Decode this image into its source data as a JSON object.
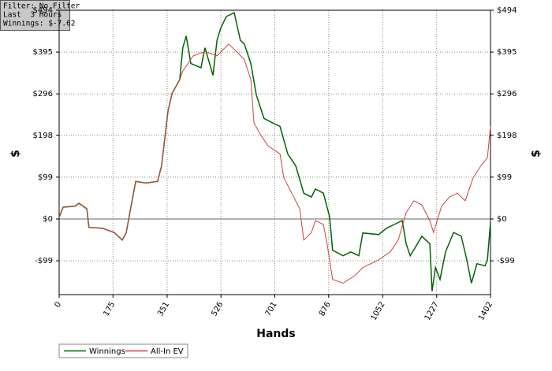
{
  "chart_data": {
    "type": "line",
    "x_label": "Hands",
    "y_label": "$",
    "y2_label": "$",
    "annotations": [
      "Filter: No Filter",
      "Last  3 Hours",
      "Winnings: $-7.62"
    ],
    "xlim": [
      0,
      1402
    ],
    "xticks": [
      0,
      175,
      351,
      526,
      701,
      876,
      1052,
      1227,
      1402
    ],
    "ylim": [
      -179,
      494
    ],
    "yticks": [
      {
        "value": -99,
        "label": "-$99"
      },
      {
        "value": 0,
        "label": "$0"
      },
      {
        "value": 99,
        "label": "$99"
      },
      {
        "value": 198,
        "label": "$198"
      },
      {
        "value": 296,
        "label": "$296"
      },
      {
        "value": 395,
        "label": "$395"
      },
      {
        "value": 494,
        "label": "$494"
      }
    ],
    "y2lim": [
      -179,
      494
    ],
    "y2ticks": [
      {
        "value": -99,
        "label": "-$99"
      },
      {
        "value": 0,
        "label": "$0"
      },
      {
        "value": 99,
        "label": "$99"
      },
      {
        "value": 198,
        "label": "$198"
      },
      {
        "value": 296,
        "label": "$296"
      },
      {
        "value": 395,
        "label": "$395"
      },
      {
        "value": 494,
        "label": "$494"
      }
    ],
    "grid": true,
    "legend": "bottom-left",
    "series": [
      {
        "name": "Winnings",
        "color": "#006400",
        "x": [
          0,
          13,
          51,
          64,
          90,
          97,
          141,
          179,
          205,
          218,
          231,
          249,
          282,
          320,
          333,
          354,
          367,
          392,
          402,
          413,
          428,
          461,
          474,
          500,
          513,
          525,
          543,
          569,
          589,
          602,
          623,
          641,
          666,
          692,
          718,
          743,
          769,
          795,
          820,
          833,
          859,
          879,
          889,
          923,
          948,
          974,
          987,
          1038,
          1064,
          1089,
          1115,
          1128,
          1141,
          1179,
          1205,
          1212,
          1223,
          1238,
          1256,
          1282,
          1307,
          1325,
          1340,
          1358,
          1384,
          1392,
          1402
        ],
        "values": [
          4,
          28,
          30,
          37,
          24,
          -20,
          -22,
          -32,
          -50,
          -32,
          19,
          89,
          85,
          89,
          126,
          256,
          297,
          330,
          405,
          433,
          368,
          358,
          405,
          340,
          423,
          451,
          479,
          488,
          423,
          414,
          368,
          293,
          238,
          228,
          219,
          154,
          126,
          61,
          52,
          71,
          61,
          6,
          -74,
          -87,
          -78,
          -87,
          -33,
          -37,
          -22,
          -13,
          -4,
          -59,
          -87,
          -41,
          -59,
          -171,
          -115,
          -143,
          -78,
          -32,
          -41,
          -97,
          -152,
          -106,
          -111,
          -97,
          -8
        ]
      },
      {
        "name": "All-In EV",
        "color": "#d04040",
        "x": [
          0,
          13,
          51,
          64,
          90,
          97,
          141,
          179,
          205,
          218,
          231,
          249,
          282,
          320,
          333,
          354,
          367,
          392,
          402,
          436,
          474,
          513,
          551,
          577,
          602,
          623,
          633,
          654,
          679,
          718,
          730,
          756,
          782,
          795,
          820,
          833,
          859,
          871,
          889,
          923,
          961,
          987,
          1038,
          1076,
          1102,
          1128,
          1153,
          1179,
          1205,
          1217,
          1243,
          1269,
          1294,
          1320,
          1346,
          1371,
          1392,
          1402
        ],
        "values": [
          4,
          28,
          30,
          37,
          24,
          -20,
          -22,
          -32,
          -50,
          -32,
          19,
          89,
          85,
          89,
          126,
          256,
          297,
          330,
          350,
          386,
          396,
          386,
          414,
          396,
          377,
          330,
          228,
          200,
          173,
          154,
          98,
          61,
          24,
          -50,
          -32,
          -4,
          -13,
          -59,
          -143,
          -152,
          -134,
          -115,
          -97,
          -78,
          -50,
          15,
          43,
          33,
          -4,
          -32,
          30,
          52,
          61,
          43,
          98,
          126,
          145,
          219
        ]
      }
    ]
  }
}
